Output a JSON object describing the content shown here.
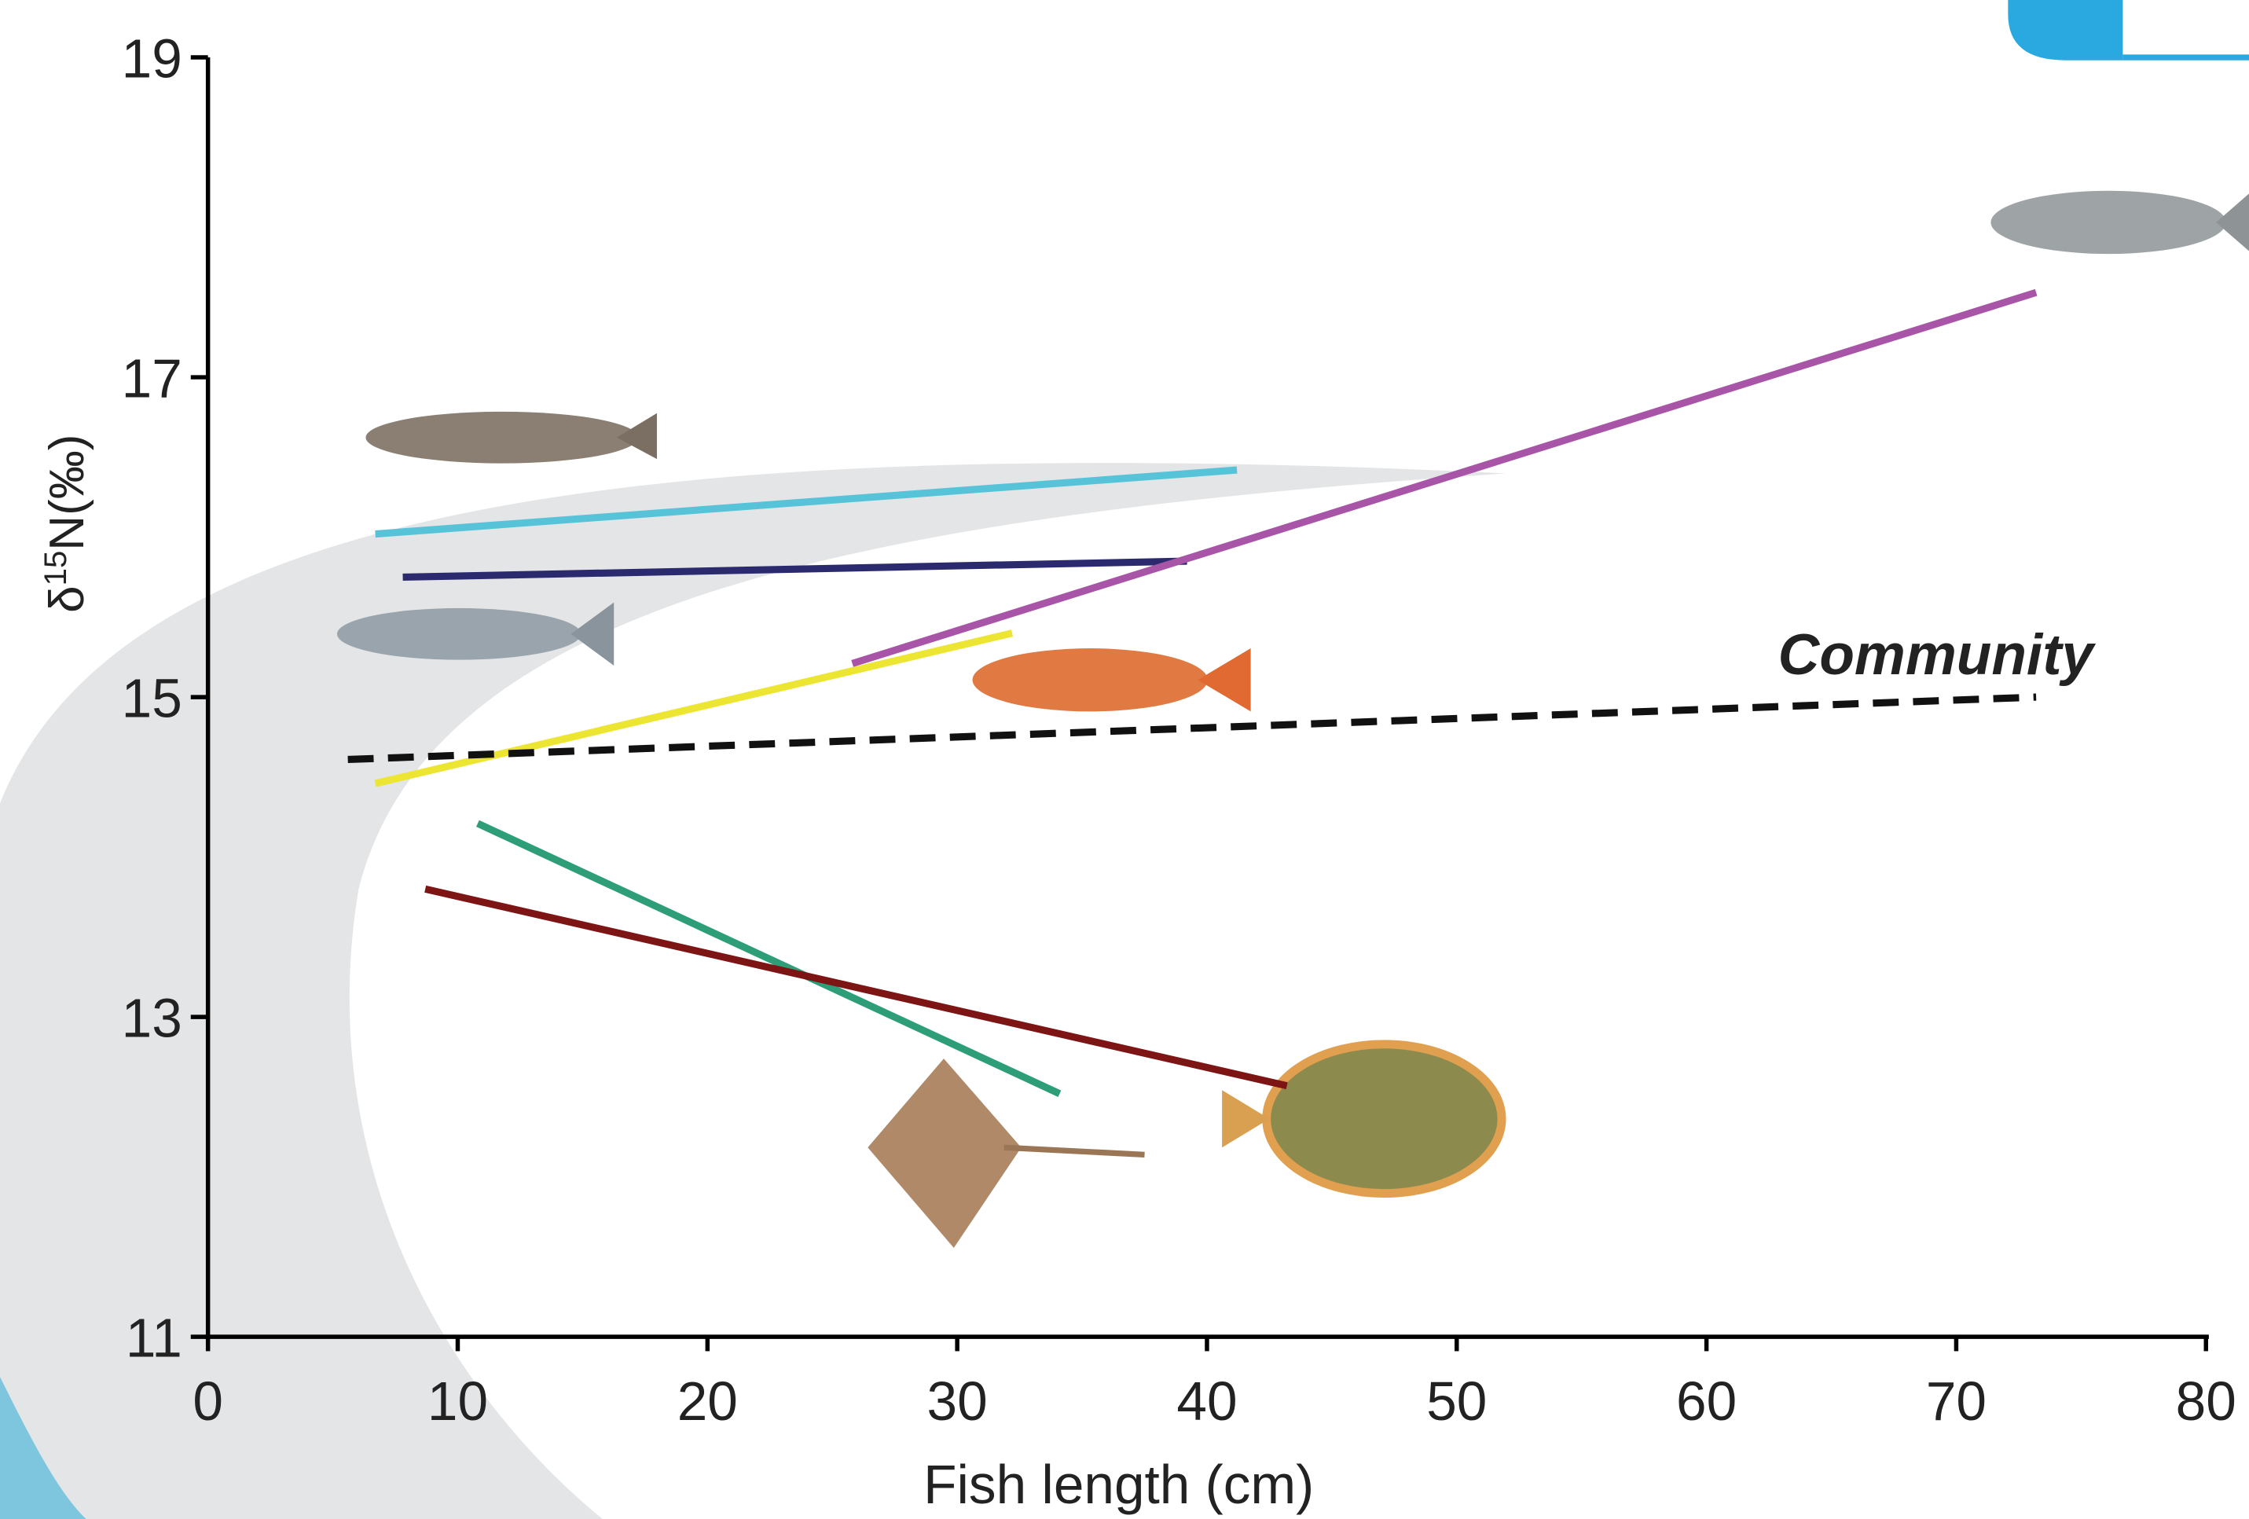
{
  "chart_data": {
    "type": "line",
    "xlabel": "Fish length (cm)",
    "ylabel": [
      "δ",
      "15",
      "N(‰)"
    ],
    "xlim": [
      0,
      80
    ],
    "ylim": [
      11,
      19
    ],
    "xticks": [
      0,
      10,
      20,
      30,
      40,
      50,
      60,
      70,
      80
    ],
    "yticks": [
      11,
      13,
      15,
      17,
      19
    ],
    "series": [
      {
        "color": "#56c3d9",
        "x": [
          6.7,
          41.2
        ],
        "values": [
          16.02,
          16.42
        ]
      },
      {
        "color": "#2b2a6e",
        "x": [
          7.8,
          39.2
        ],
        "values": [
          15.75,
          15.85
        ]
      },
      {
        "color": "#a855a8",
        "x": [
          25.8,
          73.2
        ],
        "values": [
          15.21,
          17.53
        ]
      },
      {
        "color": "#ece532",
        "x": [
          6.7,
          32.2
        ],
        "values": [
          14.46,
          15.4
        ]
      },
      {
        "color": "#2e9e78",
        "x": [
          10.8,
          34.1
        ],
        "values": [
          14.21,
          12.52
        ]
      },
      {
        "color": "#7e1515",
        "x": [
          8.7,
          43.2
        ],
        "values": [
          13.8,
          12.57
        ]
      },
      {
        "name": "Community",
        "color": "#111111",
        "dashed": true,
        "x": [
          5.6,
          73.2
        ],
        "values": [
          14.61,
          15.0
        ]
      }
    ]
  }
}
